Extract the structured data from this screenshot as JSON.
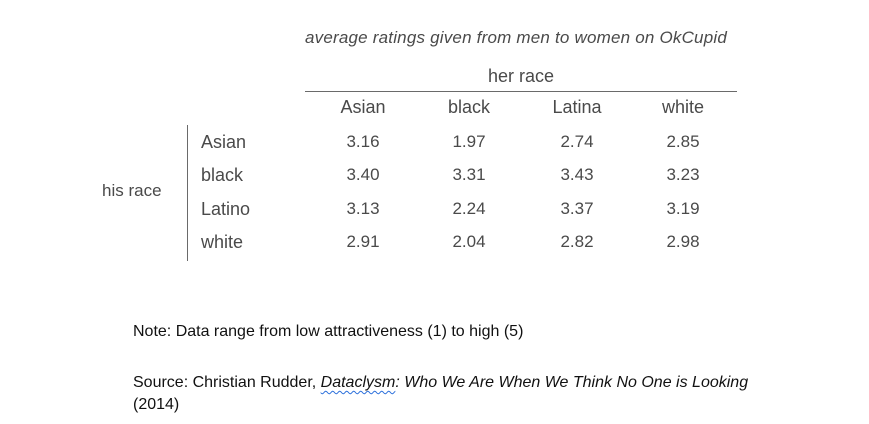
{
  "chart_data": {
    "type": "table",
    "title": "average ratings given from men to women on OkCupid",
    "column_group_label": "her race",
    "row_group_label": "his race",
    "columns": [
      "Asian",
      "black",
      "Latina",
      "white"
    ],
    "rows": [
      {
        "label": "Asian",
        "values": [
          "3.16",
          "1.97",
          "2.74",
          "2.85"
        ]
      },
      {
        "label": "black",
        "values": [
          "3.40",
          "3.31",
          "3.43",
          "3.23"
        ]
      },
      {
        "label": "Latino",
        "values": [
          "3.13",
          "2.24",
          "3.37",
          "3.19"
        ]
      },
      {
        "label": "white",
        "values": [
          "2.91",
          "2.04",
          "2.82",
          "2.98"
        ]
      }
    ]
  },
  "note": "Note: Data range from low attractiveness (1) to high (5)",
  "source": {
    "prefix": "Source: Christian Rudder, ",
    "book_first_word": "Dataclysm",
    "book_rest": ": Who We Are When We Think No One is Looking",
    "suffix": " (2014)"
  }
}
